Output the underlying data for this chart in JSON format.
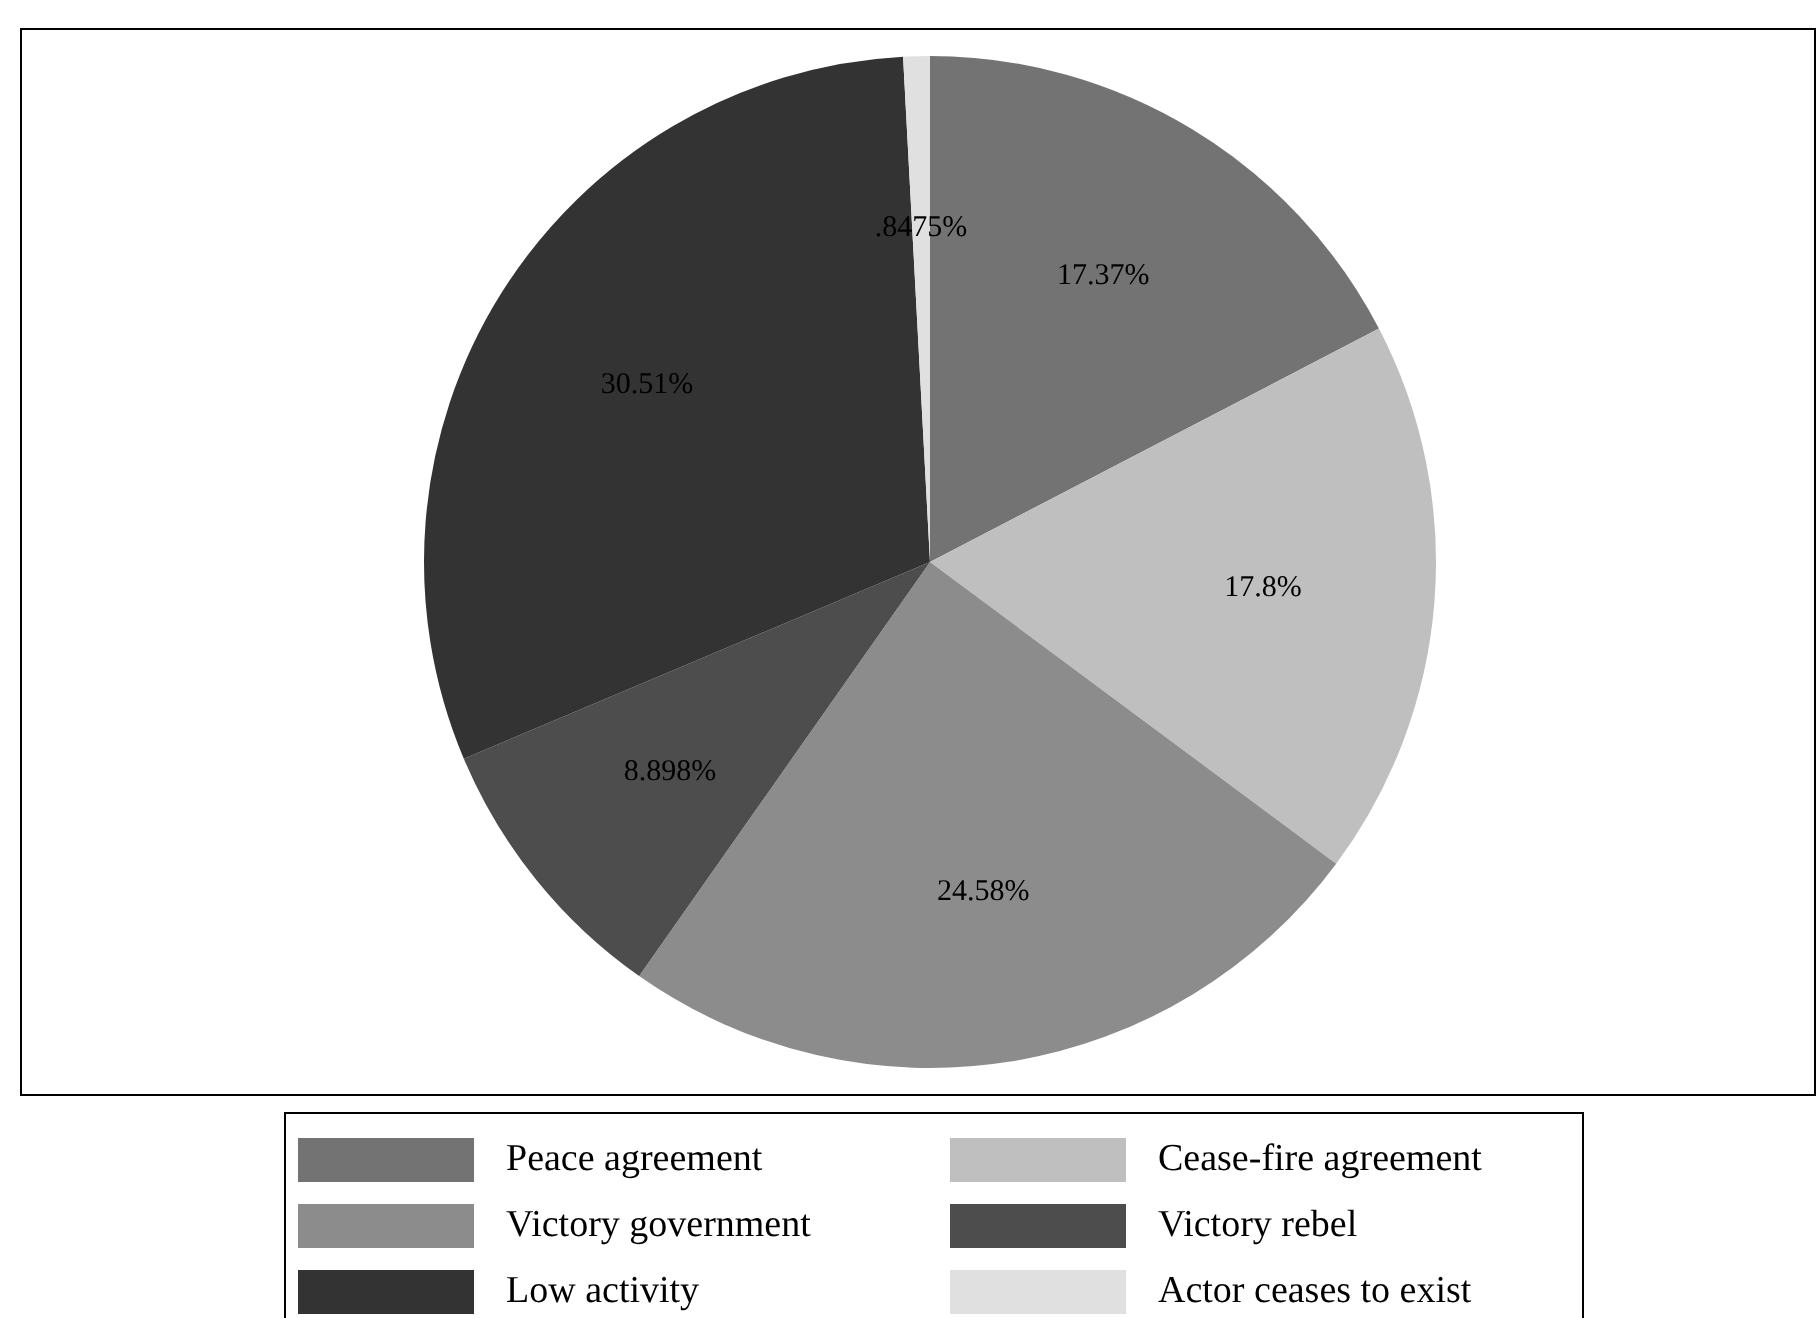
{
  "chart_data": {
    "type": "pie",
    "categories": [
      "Peace agreement",
      "Cease-fire agreement",
      "Victory government",
      "Victory rebel",
      "Low activity",
      "Actor ceases to exist"
    ],
    "values": [
      17.37,
      17.8,
      24.58,
      8.898,
      30.51,
      0.8475
    ],
    "value_labels": [
      "17.37%",
      "17.8%",
      "24.58%",
      "8.898%",
      "30.51%",
      ".8475%"
    ],
    "colors": [
      "#737373",
      "#bfbfbf",
      "#8c8c8c",
      "#4d4d4d",
      "#333333",
      "#e0e0e0"
    ],
    "legend": "bottom"
  }
}
